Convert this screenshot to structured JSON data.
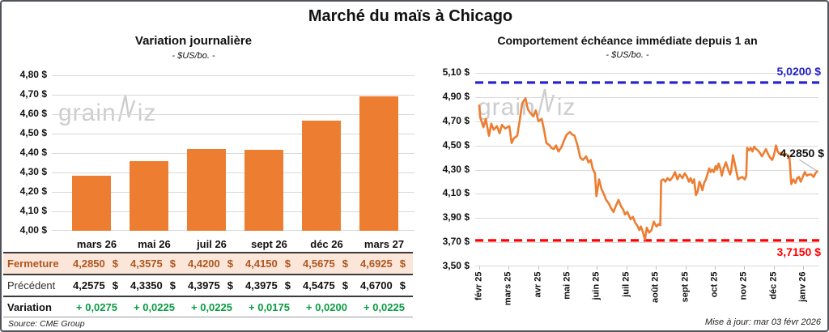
{
  "page": {
    "title": "Marché du maïs à Chicago",
    "source_note": "Source: CME Group",
    "update_note": "Mise à jour: mar 03 févr 2026",
    "watermark": {
      "prefix": "grain",
      "suffix": "iz"
    }
  },
  "colors": {
    "accent_orange": "#ED7D31",
    "fermeture_bg": "#FBE6D9",
    "fermeture_text": "#AE5620",
    "gain_green": "#0A9C41",
    "resistance_blue": "#2222CC",
    "support_red": "#FF0000",
    "gridline": "#D9D9D9",
    "leader_gray": "#B7B7B7"
  },
  "left_chart": {
    "title": "Variation journalière",
    "subtitle": "- $US/bo. -",
    "y_ticks": [
      "4,80 $",
      "4,70 $",
      "4,60 $",
      "4,50 $",
      "4,40 $",
      "4,30 $",
      "4,20 $",
      "4,10 $",
      "4,00 $"
    ]
  },
  "table": {
    "columns": [
      "mars 26",
      "mai 26",
      "juil 26",
      "sept 26",
      "déc 26",
      "mars 27"
    ],
    "rows": [
      {
        "label": "Fermeture",
        "values": [
          "4,2850",
          "4,3575",
          "4,4200",
          "4,4150",
          "4,5675",
          "4,6925"
        ],
        "unit": "$"
      },
      {
        "label": "Précédent",
        "values": [
          "4,2575",
          "4,3350",
          "4,3975",
          "4,3975",
          "4,5475",
          "4,6700"
        ],
        "unit": "$"
      },
      {
        "label": "Variation",
        "values": [
          "+ 0,0275",
          "+ 0,0225",
          "+ 0,0225",
          "+ 0,0175",
          "+ 0,0200",
          "+ 0,0225"
        ],
        "unit": ""
      }
    ]
  },
  "right_chart": {
    "title": "Comportement échéance immédiate depuis 1 an",
    "subtitle": "- $US/bo. -",
    "y_ticks": [
      "5,10 $",
      "4,90 $",
      "4,70 $",
      "4,50 $",
      "4,30 $",
      "4,10 $",
      "3,90 $",
      "3,70 $",
      "3,50 $"
    ],
    "x_ticks": [
      "févr 25",
      "mars 25",
      "avr 25",
      "mai 25",
      "juin 25",
      "juil 25",
      "août 25",
      "sept 25",
      "oct 25",
      "nov 25",
      "déc 25",
      "janv 26"
    ],
    "resistance_label": "5,0200 $",
    "support_label": "3,7150 $",
    "last_label": "4,2850 $"
  },
  "chart_data": [
    {
      "type": "bar",
      "title": "Variation journalière",
      "ylabel": "$US/bo.",
      "categories": [
        "mars 26",
        "mai 26",
        "juil 26",
        "sept 26",
        "déc 26",
        "mars 27"
      ],
      "values": [
        4.285,
        4.3575,
        4.42,
        4.415,
        4.5675,
        4.6925
      ],
      "ylim": [
        4.0,
        4.8
      ],
      "ytick_step": 0.1,
      "grid": true,
      "bar_color": "#ED7D31"
    },
    {
      "type": "line",
      "title": "Comportement échéance immédiate depuis 1 an",
      "ylabel": "$US/bo.",
      "ylim": [
        3.5,
        5.1
      ],
      "ytick_step": 0.2,
      "grid": true,
      "x_categories": [
        "févr 25",
        "mars 25",
        "avr 25",
        "mai 25",
        "juin 25",
        "juil 25",
        "août 25",
        "sept 25",
        "oct 25",
        "nov 25",
        "déc 25",
        "janv 26"
      ],
      "x_unit": "months_since_fevr_25",
      "line_color": "#ED7D31",
      "reference_lines": [
        {
          "value": 5.02,
          "color": "#2222CC",
          "style": "dashed",
          "label": "5,0200 $"
        },
        {
          "value": 3.715,
          "color": "#FF0000",
          "style": "dashed",
          "label": "3,7150 $"
        }
      ],
      "last_value": 4.285,
      "last_value_label": "4,2850 $",
      "points": [
        [
          0.0,
          4.83
        ],
        [
          0.03,
          4.73
        ],
        [
          0.08,
          4.7
        ],
        [
          0.14,
          4.65
        ],
        [
          0.22,
          4.72
        ],
        [
          0.33,
          4.58
        ],
        [
          0.41,
          4.68
        ],
        [
          0.49,
          4.63
        ],
        [
          0.6,
          4.66
        ],
        [
          0.69,
          4.6
        ],
        [
          0.77,
          4.67
        ],
        [
          0.88,
          4.64
        ],
        [
          1.02,
          4.66
        ],
        [
          1.1,
          4.52
        ],
        [
          1.18,
          4.56
        ],
        [
          1.29,
          4.58
        ],
        [
          1.37,
          4.7
        ],
        [
          1.46,
          4.85
        ],
        [
          1.57,
          4.89
        ],
        [
          1.65,
          4.8
        ],
        [
          1.73,
          4.77
        ],
        [
          1.84,
          4.74
        ],
        [
          1.92,
          4.79
        ],
        [
          2.01,
          4.7
        ],
        [
          2.12,
          4.72
        ],
        [
          2.2,
          4.63
        ],
        [
          2.28,
          4.52
        ],
        [
          2.39,
          4.5
        ],
        [
          2.45,
          4.48
        ],
        [
          2.53,
          4.47
        ],
        [
          2.61,
          4.5
        ],
        [
          2.69,
          4.45
        ],
        [
          2.8,
          4.49
        ],
        [
          2.88,
          4.54
        ],
        [
          2.97,
          4.59
        ],
        [
          3.08,
          4.61
        ],
        [
          3.16,
          4.59
        ],
        [
          3.24,
          4.58
        ],
        [
          3.35,
          4.49
        ],
        [
          3.43,
          4.4
        ],
        [
          3.52,
          4.38
        ],
        [
          3.63,
          4.41
        ],
        [
          3.71,
          4.36
        ],
        [
          3.79,
          4.38
        ],
        [
          3.85,
          4.31
        ],
        [
          3.93,
          4.27
        ],
        [
          3.98,
          4.08
        ],
        [
          4.07,
          4.22
        ],
        [
          4.15,
          4.14
        ],
        [
          4.23,
          4.1
        ],
        [
          4.31,
          4.05
        ],
        [
          4.4,
          4.02
        ],
        [
          4.48,
          3.98
        ],
        [
          4.56,
          3.95
        ],
        [
          4.64,
          4.0
        ],
        [
          4.73,
          4.05
        ],
        [
          4.81,
          4.0
        ],
        [
          4.89,
          3.97
        ],
        [
          4.95,
          3.93
        ],
        [
          5.03,
          3.95
        ],
        [
          5.14,
          3.89
        ],
        [
          5.22,
          3.91
        ],
        [
          5.3,
          3.86
        ],
        [
          5.36,
          3.84
        ],
        [
          5.44,
          3.8
        ],
        [
          5.49,
          3.83
        ],
        [
          5.55,
          3.79
        ],
        [
          5.63,
          3.72
        ],
        [
          5.69,
          3.82
        ],
        [
          5.77,
          3.78
        ],
        [
          5.85,
          3.8
        ],
        [
          5.93,
          3.87
        ],
        [
          6.02,
          3.83
        ],
        [
          6.1,
          3.85
        ],
        [
          6.15,
          3.84
        ],
        [
          6.18,
          4.21
        ],
        [
          6.26,
          4.22
        ],
        [
          6.32,
          4.2
        ],
        [
          6.4,
          4.23
        ],
        [
          6.48,
          4.21
        ],
        [
          6.57,
          4.24
        ],
        [
          6.65,
          4.28
        ],
        [
          6.73,
          4.22
        ],
        [
          6.81,
          4.26
        ],
        [
          6.9,
          4.23
        ],
        [
          6.98,
          4.27
        ],
        [
          7.06,
          4.24
        ],
        [
          7.12,
          4.2
        ],
        [
          7.18,
          4.23
        ],
        [
          7.24,
          4.19
        ],
        [
          7.3,
          4.22
        ],
        [
          7.36,
          4.09
        ],
        [
          7.42,
          4.12
        ],
        [
          7.48,
          4.2
        ],
        [
          7.53,
          4.17
        ],
        [
          7.58,
          4.13
        ],
        [
          7.64,
          4.19
        ],
        [
          7.7,
          4.22
        ],
        [
          7.75,
          4.26
        ],
        [
          7.81,
          4.31
        ],
        [
          7.86,
          4.28
        ],
        [
          7.91,
          4.3
        ],
        [
          7.97,
          4.28
        ],
        [
          8.03,
          4.33
        ],
        [
          8.08,
          4.3
        ],
        [
          8.13,
          4.35
        ],
        [
          8.19,
          4.31
        ],
        [
          8.24,
          4.25
        ],
        [
          8.3,
          4.31
        ],
        [
          8.38,
          4.36
        ],
        [
          8.46,
          4.3
        ],
        [
          8.52,
          4.26
        ],
        [
          8.56,
          4.29
        ],
        [
          8.62,
          4.42
        ],
        [
          8.68,
          4.35
        ],
        [
          8.74,
          4.28
        ],
        [
          8.79,
          4.22
        ],
        [
          8.85,
          4.23
        ],
        [
          8.93,
          4.24
        ],
        [
          9.02,
          4.22
        ],
        [
          9.07,
          4.25
        ],
        [
          9.1,
          4.48
        ],
        [
          9.16,
          4.46
        ],
        [
          9.22,
          4.48
        ],
        [
          9.28,
          4.45
        ],
        [
          9.34,
          4.49
        ],
        [
          9.4,
          4.47
        ],
        [
          9.46,
          4.46
        ],
        [
          9.53,
          4.44
        ],
        [
          9.6,
          4.41
        ],
        [
          9.67,
          4.44
        ],
        [
          9.74,
          4.47
        ],
        [
          9.81,
          4.43
        ],
        [
          9.88,
          4.4
        ],
        [
          9.95,
          4.38
        ],
        [
          10.01,
          4.42
        ],
        [
          10.08,
          4.5
        ],
        [
          10.14,
          4.45
        ],
        [
          10.2,
          4.43
        ],
        [
          10.27,
          4.44
        ],
        [
          10.34,
          4.42
        ],
        [
          10.41,
          4.43
        ],
        [
          10.48,
          4.42
        ],
        [
          10.54,
          4.4
        ],
        [
          10.6,
          4.18
        ],
        [
          10.67,
          4.22
        ],
        [
          10.74,
          4.19
        ],
        [
          10.8,
          4.23
        ],
        [
          10.86,
          4.24
        ],
        [
          10.92,
          4.2
        ],
        [
          10.99,
          4.24
        ],
        [
          11.06,
          4.28
        ],
        [
          11.13,
          4.25
        ],
        [
          11.2,
          4.26
        ],
        [
          11.28,
          4.26
        ],
        [
          11.36,
          4.24
        ],
        [
          11.42,
          4.27
        ],
        [
          11.48,
          4.285
        ]
      ]
    }
  ]
}
